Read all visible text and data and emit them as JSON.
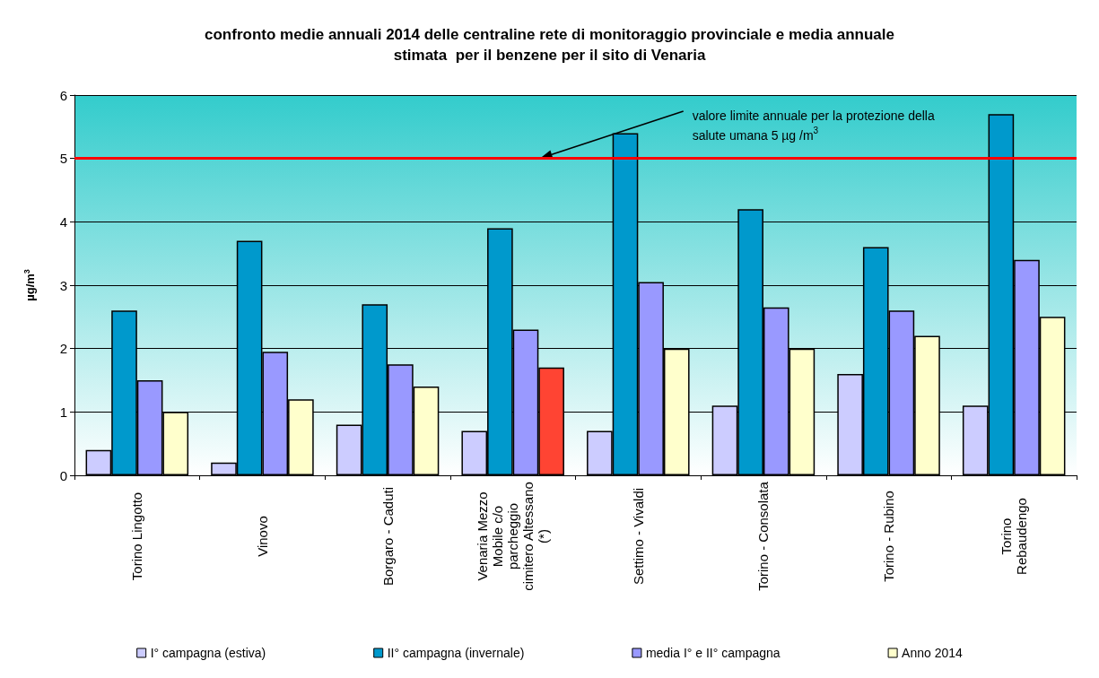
{
  "chart_data": {
    "type": "bar",
    "title": "confronto medie annuali 2014 delle centraline rete di monitoraggio provinciale e media annuale\nstimata  per il benzene per il sito di Venaria",
    "ylabel": "µg/m$^{3}$",
    "categories": [
      "Torino Lingotto",
      "Vinovo",
      "Borgaro - Caduti",
      "Venaria Mezzo\nMobile c/o\nparcheggio\ncimitero Altessano\n(*)",
      "Settimo - Vivaldi",
      "Torino - Consolata",
      "Torino - Rubino",
      "Torino\nRebaudengo"
    ],
    "series": [
      {
        "name": "I° campagna (estiva)",
        "color": "#ccccff",
        "values": [
          0.4,
          0.2,
          0.8,
          0.7,
          0.7,
          1.1,
          1.6,
          1.1
        ]
      },
      {
        "name": "II° campagna (invernale)",
        "color": "#0099cc",
        "values": [
          2.6,
          3.7,
          2.7,
          3.9,
          5.4,
          4.2,
          3.6,
          5.7
        ]
      },
      {
        "name": "media I° e II° campagna",
        "color": "#9999ff",
        "values": [
          1.5,
          1.95,
          1.75,
          2.3,
          3.05,
          2.65,
          2.6,
          3.4
        ]
      },
      {
        "name": "Anno 2014",
        "color": "#ffffcc",
        "colors": [
          "#ffffcc",
          "#ffffcc",
          "#ffffcc",
          "#ff4433",
          "#ffffcc",
          "#ffffcc",
          "#ffffcc",
          "#ffffcc"
        ],
        "values": [
          1.0,
          1.2,
          1.4,
          1.7,
          2.0,
          2.0,
          2.2,
          2.5
        ]
      }
    ],
    "ylim": [
      0,
      6
    ],
    "yticks": [
      0,
      1,
      2,
      3,
      4,
      5,
      6
    ],
    "grid": "y",
    "legend": "bottom",
    "ref_lines": [
      {
        "axis": "y",
        "value": 5,
        "color": "#ff0000",
        "label": "valore limite annuale per la protezione della\nsalute umana 5 µg /m$^{3}$"
      }
    ]
  }
}
